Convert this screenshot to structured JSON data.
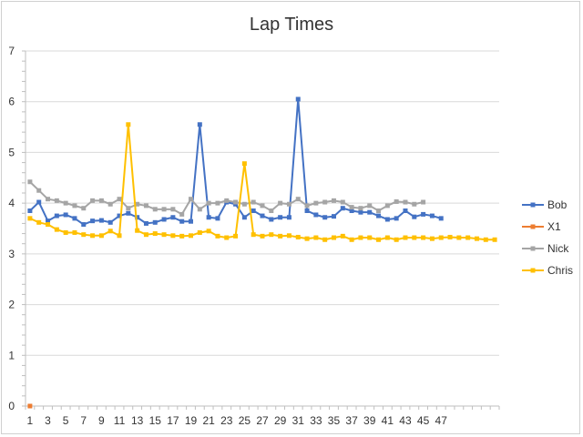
{
  "chart_data": {
    "type": "line",
    "title": "Lap Times",
    "ylim": [
      0,
      7
    ],
    "yticks": [
      "0",
      "1",
      "2",
      "3",
      "4",
      "5",
      "6",
      "7"
    ],
    "xticks": [
      "1",
      "3",
      "5",
      "7",
      "9",
      "11",
      "13",
      "15",
      "17",
      "19",
      "21",
      "23",
      "25",
      "27",
      "29",
      "31",
      "33",
      "35",
      "37",
      "39",
      "41",
      "43",
      "45",
      "47"
    ],
    "x_count": 53,
    "grid": true,
    "legend_position": "right",
    "series": [
      {
        "name": "Bob",
        "color": "#4472C4",
        "values": [
          3.85,
          4.02,
          3.65,
          3.75,
          3.77,
          3.7,
          3.58,
          3.65,
          3.66,
          3.62,
          3.75,
          3.8,
          3.72,
          3.6,
          3.62,
          3.68,
          3.72,
          3.64,
          3.64,
          5.55,
          3.72,
          3.7,
          4.02,
          3.98,
          3.72,
          3.85,
          3.75,
          3.68,
          3.72,
          3.72,
          6.05,
          3.85,
          3.77,
          3.72,
          3.74,
          3.9,
          3.85,
          3.82,
          3.82,
          3.75,
          3.68,
          3.7,
          3.85,
          3.73,
          3.78,
          3.75,
          3.7
        ]
      },
      {
        "name": "X1",
        "color": "#ED7D31",
        "values": [
          0
        ]
      },
      {
        "name": "Nick",
        "color": "#A5A5A5",
        "values": [
          4.42,
          4.25,
          4.08,
          4.05,
          4.0,
          3.95,
          3.9,
          4.05,
          4.05,
          3.98,
          4.08,
          3.9,
          3.98,
          3.95,
          3.88,
          3.88,
          3.88,
          3.78,
          4.08,
          3.88,
          4.0,
          4.0,
          4.05,
          4.02,
          3.98,
          4.02,
          3.95,
          3.85,
          4.0,
          3.98,
          4.08,
          3.95,
          4.0,
          4.02,
          4.05,
          4.02,
          3.92,
          3.9,
          3.95,
          3.85,
          3.95,
          4.03,
          4.02,
          3.98,
          4.02
        ]
      },
      {
        "name": "Chris",
        "color": "#FFC000",
        "values": [
          3.7,
          3.62,
          3.58,
          3.48,
          3.42,
          3.42,
          3.38,
          3.36,
          3.36,
          3.45,
          3.36,
          5.55,
          3.46,
          3.38,
          3.4,
          3.38,
          3.36,
          3.35,
          3.36,
          3.42,
          3.45,
          3.35,
          3.32,
          3.35,
          4.78,
          3.38,
          3.35,
          3.38,
          3.35,
          3.36,
          3.33,
          3.3,
          3.32,
          3.28,
          3.32,
          3.35,
          3.28,
          3.32,
          3.32,
          3.28,
          3.32,
          3.28,
          3.32,
          3.32,
          3.32,
          3.3,
          3.32,
          3.33,
          3.32,
          3.32,
          3.3,
          3.28,
          3.28
        ]
      }
    ]
  }
}
